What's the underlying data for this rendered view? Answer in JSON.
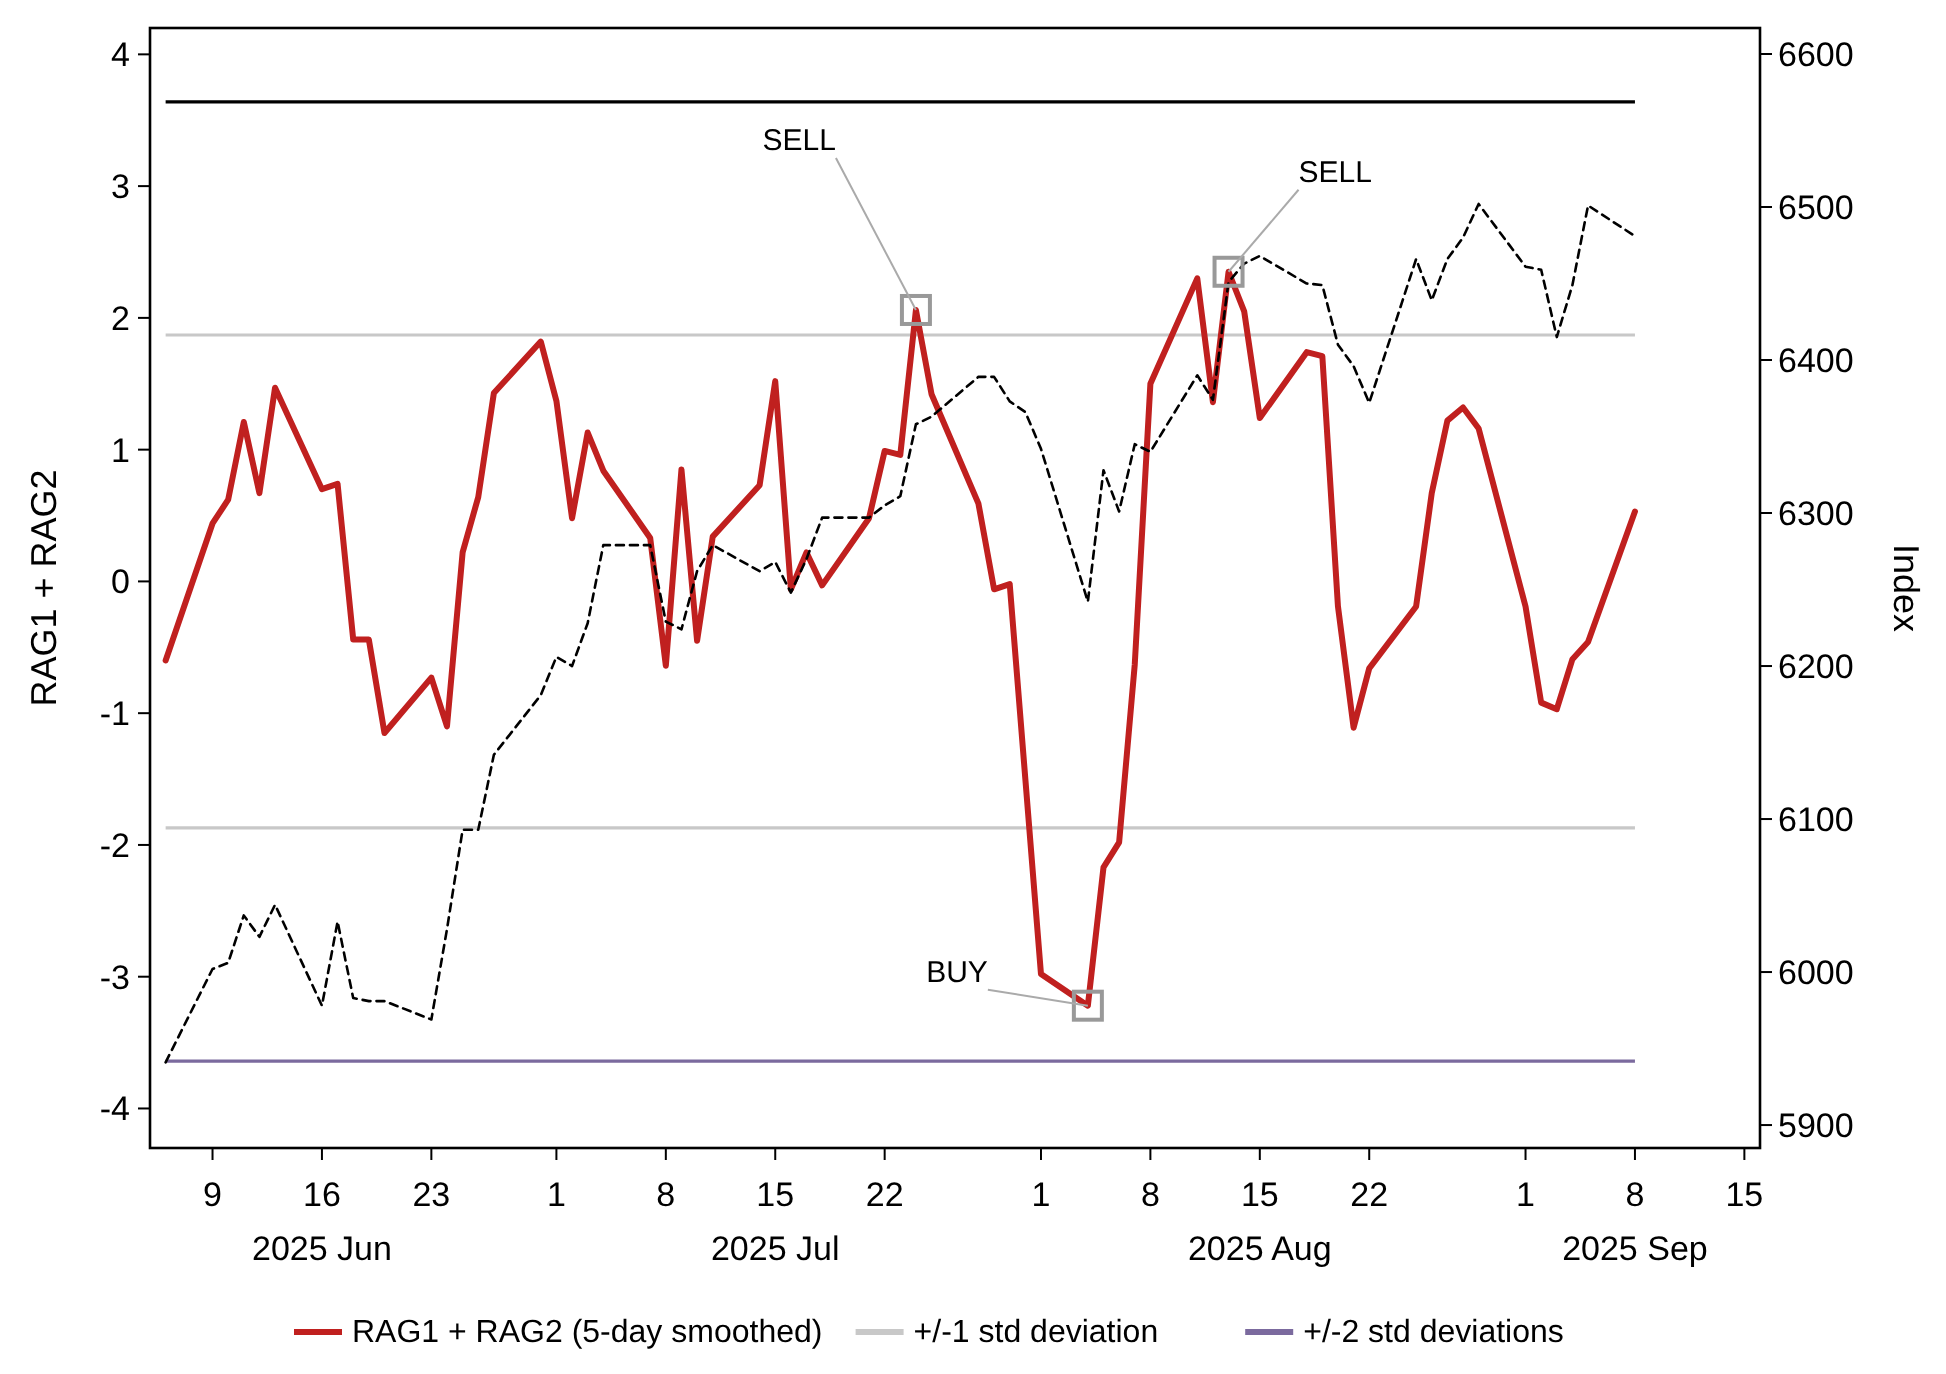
{
  "chart_data": {
    "type": "line",
    "ylabel": "RAG1 + RAG2",
    "y2label": "Index",
    "x": [
      "2025-06-06",
      "2025-06-09",
      "2025-06-10",
      "2025-06-11",
      "2025-06-12",
      "2025-06-13",
      "2025-06-16",
      "2025-06-17",
      "2025-06-18",
      "2025-06-19",
      "2025-06-20",
      "2025-06-23",
      "2025-06-24",
      "2025-06-25",
      "2025-06-26",
      "2025-06-27",
      "2025-06-30",
      "2025-07-01",
      "2025-07-02",
      "2025-07-03",
      "2025-07-04",
      "2025-07-07",
      "2025-07-08",
      "2025-07-09",
      "2025-07-10",
      "2025-07-11",
      "2025-07-14",
      "2025-07-15",
      "2025-07-16",
      "2025-07-17",
      "2025-07-18",
      "2025-07-21",
      "2025-07-22",
      "2025-07-23",
      "2025-07-24",
      "2025-07-25",
      "2025-07-28",
      "2025-07-29",
      "2025-07-30",
      "2025-07-31",
      "2025-08-01",
      "2025-08-04",
      "2025-08-05",
      "2025-08-06",
      "2025-08-07",
      "2025-08-08",
      "2025-08-11",
      "2025-08-12",
      "2025-08-13",
      "2025-08-14",
      "2025-08-15",
      "2025-08-18",
      "2025-08-19",
      "2025-08-20",
      "2025-08-21",
      "2025-08-22",
      "2025-08-25",
      "2025-08-26",
      "2025-08-27",
      "2025-08-28",
      "2025-08-29",
      "2025-09-01",
      "2025-09-02",
      "2025-09-03",
      "2025-09-04",
      "2025-09-05",
      "2025-09-08"
    ],
    "series": [
      {
        "name": "RAG1 + RAG2 (5-day smoothed)",
        "color": "#c0201f",
        "line_style": "solid",
        "values": [
          -0.6,
          0.44,
          0.62,
          1.21,
          0.67,
          1.47,
          0.7,
          0.74,
          -0.44,
          -0.44,
          -1.15,
          -0.73,
          -1.1,
          0.22,
          0.64,
          1.43,
          1.82,
          1.37,
          0.48,
          1.13,
          0.84,
          0.33,
          -0.64,
          0.85,
          -0.45,
          0.34,
          0.73,
          1.52,
          -0.06,
          0.22,
          -0.03,
          0.48,
          0.99,
          0.96,
          2.06,
          1.42,
          0.59,
          -0.06,
          -0.02,
          -1.5,
          -2.98,
          -3.22,
          -2.17,
          -1.98,
          -0.63,
          1.5,
          2.3,
          1.36,
          2.35,
          2.05,
          1.24,
          1.74,
          1.71,
          -0.19,
          -1.11,
          -0.66,
          -0.19,
          0.67,
          1.22,
          1.32,
          1.16,
          -0.19,
          -0.92,
          -0.97,
          -0.59,
          -0.46,
          0.53
        ]
      },
      {
        "color": "#000000",
        "line_style": "dashed",
        "axis": "y2",
        "values": [
          5941,
          6002,
          6006,
          6037,
          6023,
          6044,
          5978,
          6033,
          5983,
          5981,
          5981,
          5969,
          6028,
          6093,
          6093,
          6142,
          6181,
          6206,
          6200,
          6228,
          6279,
          6279,
          6229,
          6224,
          6262,
          6279,
          6262,
          6268,
          6248,
          6270,
          6297,
          6297,
          6305,
          6311,
          6358,
          6363,
          6389,
          6389,
          6373,
          6366,
          6342,
          6242,
          6328,
          6301,
          6345,
          6340,
          6390,
          6374,
          6451,
          6463,
          6468,
          6450,
          6449,
          6410,
          6396,
          6372,
          6466,
          6439,
          6466,
          6480,
          6502,
          6461,
          6459,
          6415,
          6449,
          6501,
          6481
        ]
      }
    ],
    "xlim": [
      "2025-06-05",
      "2025-09-16"
    ],
    "xticks": [
      {
        "value": "2025-06-09",
        "label": "9"
      },
      {
        "value": "2025-06-16",
        "label": "16\n2025 Jun"
      },
      {
        "value": "2025-06-23",
        "label": "23"
      },
      {
        "value": "2025-07-01",
        "label": "1"
      },
      {
        "value": "2025-07-08",
        "label": "8"
      },
      {
        "value": "2025-07-15",
        "label": "15\n2025 Jul"
      },
      {
        "value": "2025-07-22",
        "label": "22"
      },
      {
        "value": "2025-08-01",
        "label": "1"
      },
      {
        "value": "2025-08-08",
        "label": "8"
      },
      {
        "value": "2025-08-15",
        "label": "15\n2025 Aug"
      },
      {
        "value": "2025-08-22",
        "label": "22"
      },
      {
        "value": "2025-09-01",
        "label": "1"
      },
      {
        "value": "2025-09-08",
        "label": "8\n2025 Sep"
      },
      {
        "value": "2025-09-15",
        "label": "15"
      }
    ],
    "ylim": [
      -4.3,
      4.2
    ],
    "yticks": [
      -4,
      -3,
      -2,
      -1,
      0,
      1,
      2,
      3,
      4
    ],
    "y2lim": [
      5885,
      6617
    ],
    "y2ticks": [
      5900,
      6000,
      6100,
      6200,
      6300,
      6400,
      6500,
      6600
    ],
    "ref_lines": [
      {
        "axis": "y",
        "value": 3.64,
        "color": "#000000"
      },
      {
        "axis": "y",
        "value": 1.87,
        "color": "#c8c8c8",
        "label": "+/-1 std deviation"
      },
      {
        "axis": "y",
        "value": -1.87,
        "color": "#c8c8c8"
      },
      {
        "axis": "y",
        "value": -3.64,
        "color": "#7b6a9e",
        "label": "+/-2 std deviations"
      }
    ],
    "annotations": [
      {
        "text": "SELL",
        "x": "2025-07-24",
        "y": 2.06
      },
      {
        "text": "SELL",
        "x": "2025-08-13",
        "y": 2.35
      },
      {
        "text": "BUY",
        "x": "2025-08-04",
        "y": -3.22
      }
    ],
    "grid": false,
    "legend": "bottom",
    "marker": "none"
  }
}
